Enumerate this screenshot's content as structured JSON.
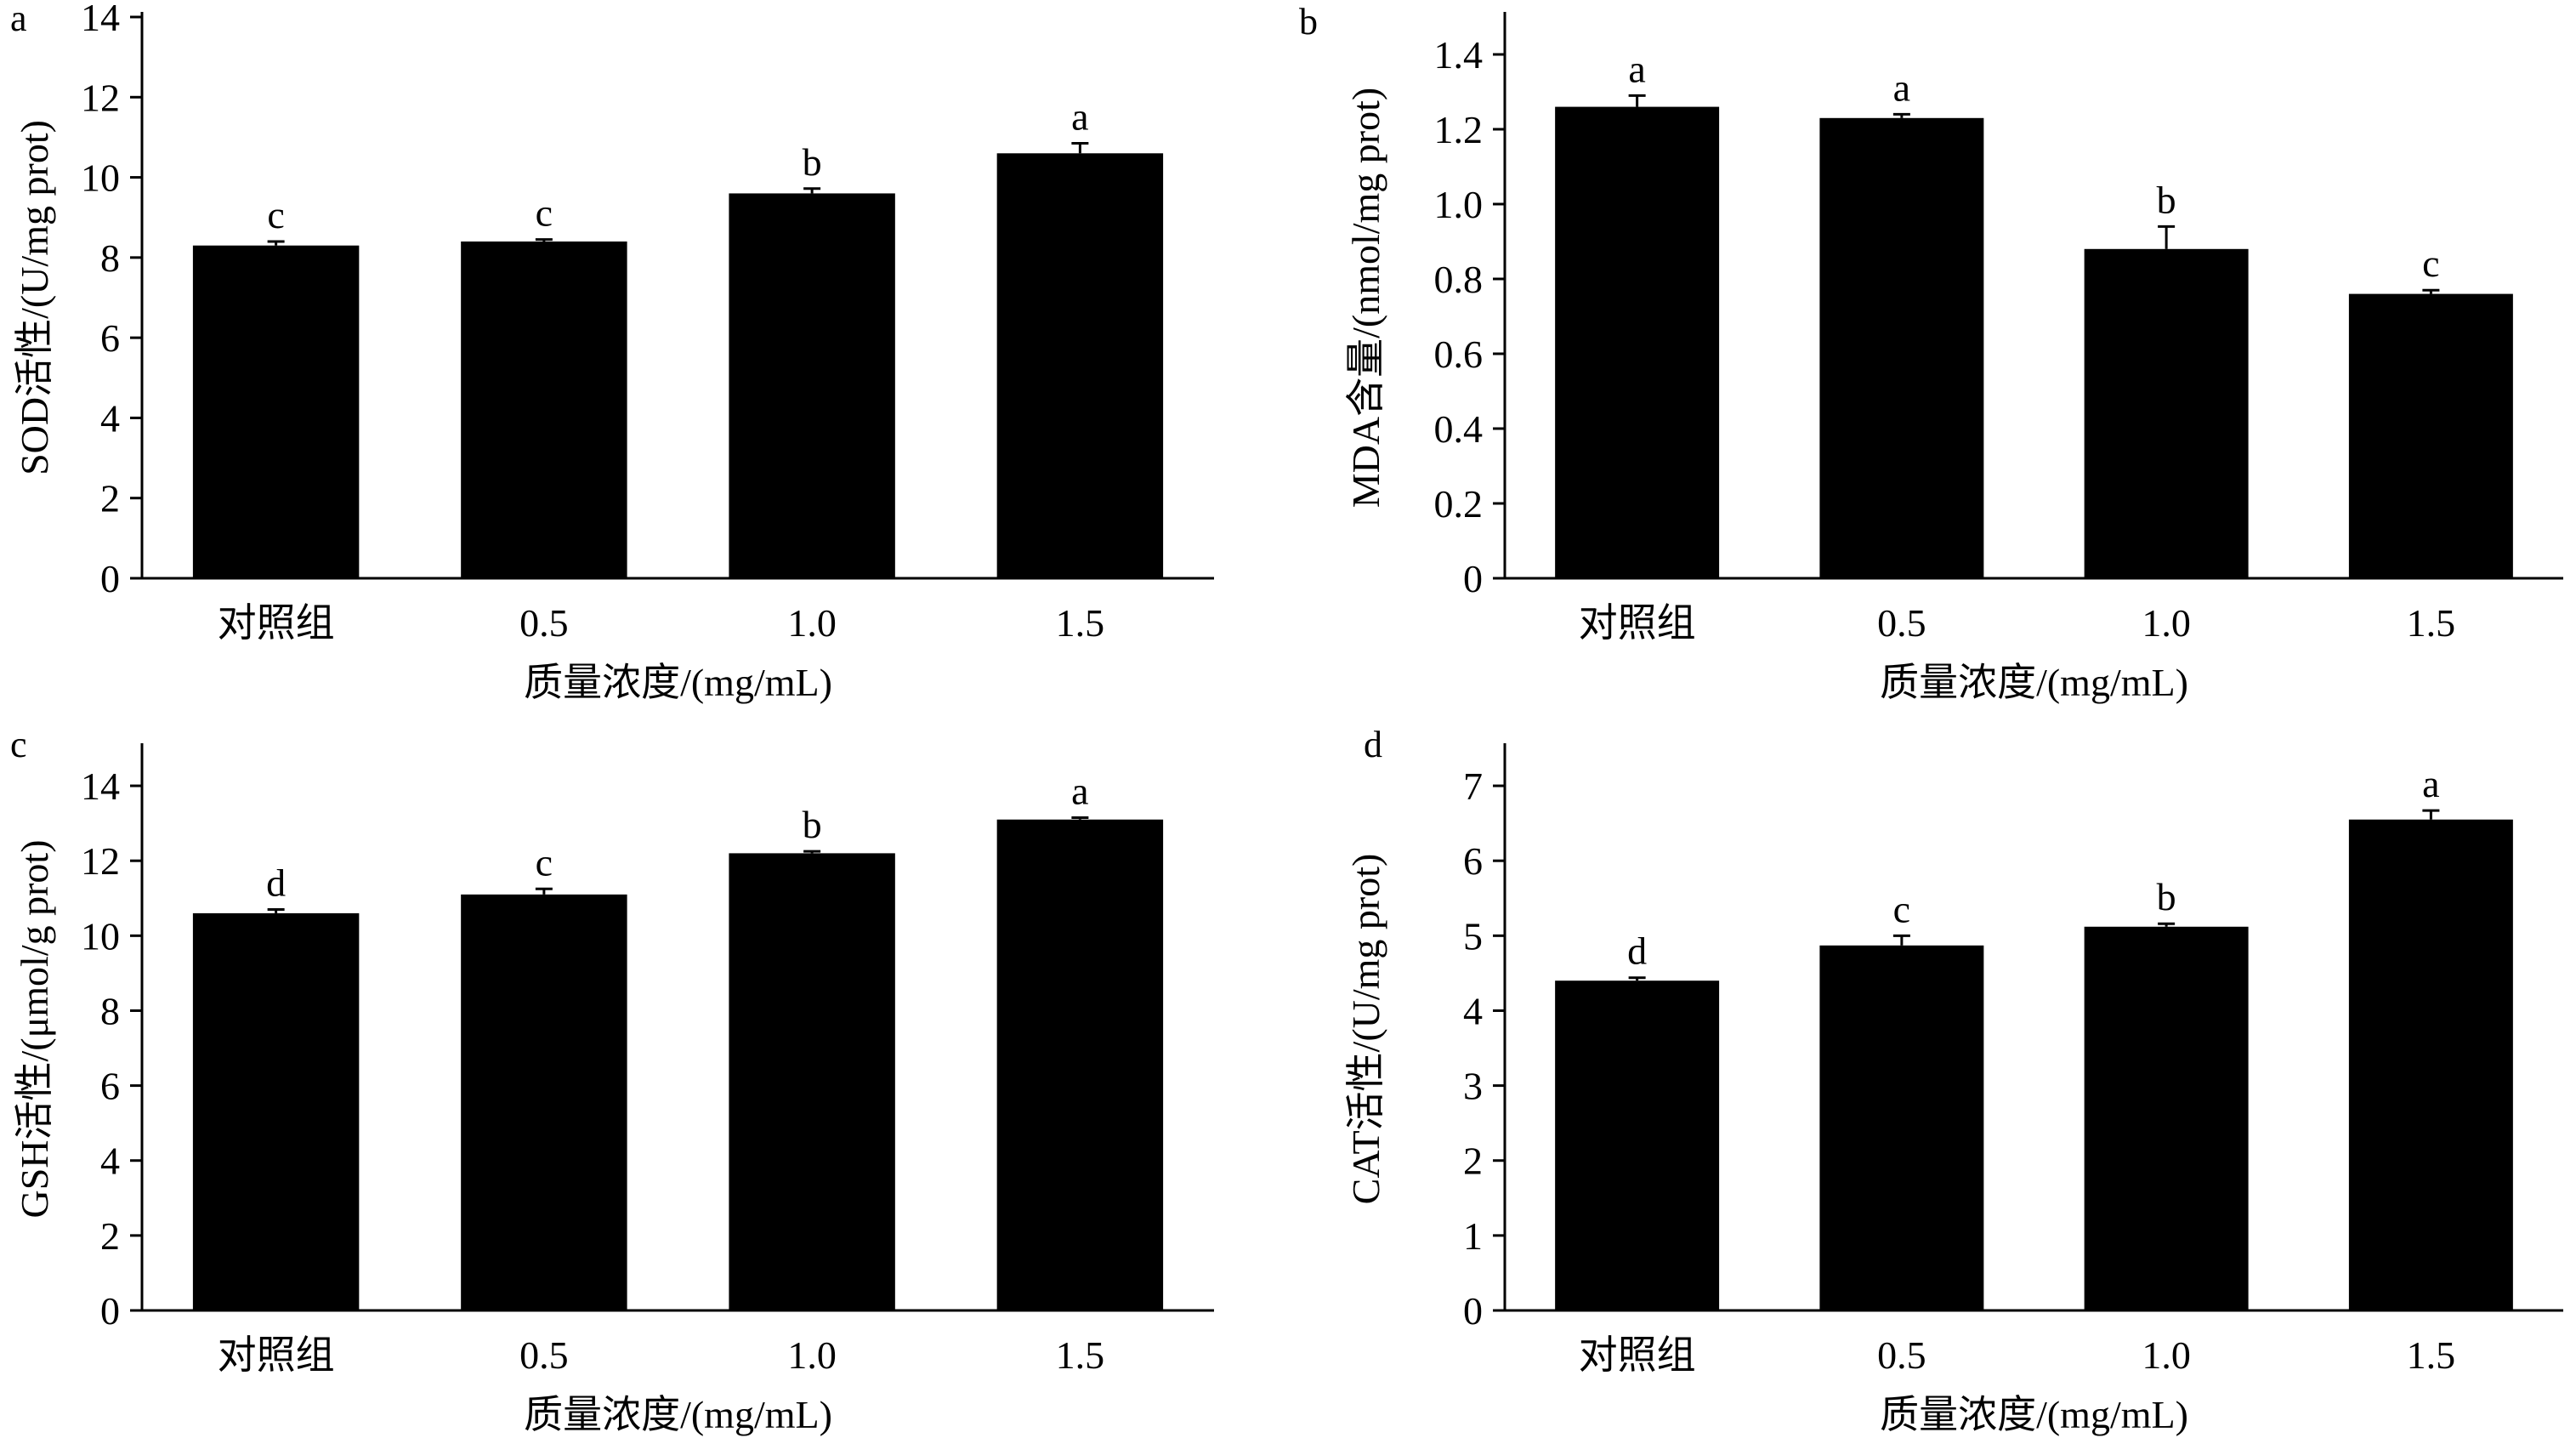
{
  "chart_data": [
    {
      "type": "bar",
      "panel_label": "a",
      "categories": [
        "对照组",
        "0.5",
        "1.0",
        "1.5"
      ],
      "values": [
        8.3,
        8.4,
        9.6,
        10.6
      ],
      "errors": [
        0.1,
        0.05,
        0.12,
        0.25
      ],
      "significance": [
        "c",
        "c",
        "b",
        "a"
      ],
      "xlabel": "质量浓度/(mg/mL)",
      "ylabel": "SOD活性/(U/mg prot)",
      "ylim": [
        0,
        14
      ],
      "yticks": [
        "0",
        "2",
        "4",
        "6",
        "8",
        "10",
        "12",
        "14"
      ],
      "bar_color": "#000000"
    },
    {
      "type": "bar",
      "panel_label": "b",
      "categories": [
        "对照组",
        "0.5",
        "1.0",
        "1.5"
      ],
      "values": [
        1.26,
        1.23,
        0.88,
        0.76
      ],
      "errors": [
        0.03,
        0.01,
        0.06,
        0.01
      ],
      "significance": [
        "a",
        "a",
        "b",
        "c"
      ],
      "xlabel": "质量浓度/(mg/mL)",
      "ylabel": "MDA含量/(nmol/mg prot)",
      "ylim": [
        0,
        1.5
      ],
      "yticks": [
        "0",
        "0.2",
        "0.4",
        "0.6",
        "0.8",
        "1.0",
        "1.2",
        "1.4"
      ],
      "bar_color": "#000000"
    },
    {
      "type": "bar",
      "panel_label": "c",
      "categories": [
        "对照组",
        "0.5",
        "1.0",
        "1.5"
      ],
      "values": [
        10.6,
        11.1,
        12.2,
        13.1
      ],
      "errors": [
        0.1,
        0.15,
        0.05,
        0.05
      ],
      "significance": [
        "d",
        "c",
        "b",
        "a"
      ],
      "xlabel": "质量浓度/(mg/mL)",
      "ylabel": "GSH活性/(μmol/g prot)",
      "ylim": [
        0,
        15
      ],
      "yticks": [
        "0",
        "2",
        "4",
        "6",
        "8",
        "10",
        "12",
        "14"
      ],
      "bar_color": "#000000"
    },
    {
      "type": "bar",
      "panel_label": "d",
      "categories": [
        "对照组",
        "0.5",
        "1.0",
        "1.5"
      ],
      "values": [
        4.4,
        4.87,
        5.12,
        6.55
      ],
      "errors": [
        0.04,
        0.13,
        0.04,
        0.12
      ],
      "significance": [
        "d",
        "c",
        "b",
        "a"
      ],
      "xlabel": "质量浓度/(mg/mL)",
      "ylabel": "CAT活性/(U/mg prot)",
      "ylim": [
        0,
        7.5
      ],
      "yticks": [
        "0",
        "1",
        "2",
        "3",
        "4",
        "5",
        "6",
        "7"
      ],
      "bar_color": "#000000"
    }
  ]
}
